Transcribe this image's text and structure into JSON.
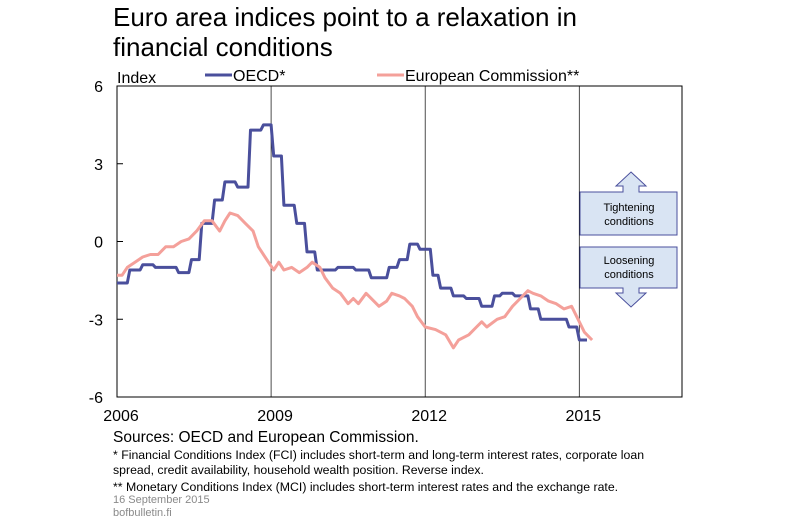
{
  "title_line1": "Euro area indices point to a relaxation in",
  "title_line2": "financial conditions",
  "sources": "Sources: OECD and European Commission.",
  "note1": "* Financial Conditions Index (FCI) includes short-term and long-term interest rates, corporate loan spread, credit availability, household wealth position. Reverse index.",
  "note2": "** Monetary Conditions Index (MCI) includes short-term interest rates and the exchange rate.",
  "date": "16 September  2015",
  "site": "bofbulletin.fi",
  "annotations": {
    "up_line1": "Tightening",
    "up_line2": "conditions",
    "down_line1": "Loosening",
    "down_line2": "conditions"
  },
  "chart_data": {
    "type": "line",
    "ylabel": "Index",
    "ylim": [
      -6,
      6
    ],
    "yticks": [
      6,
      3,
      0,
      -3,
      -6
    ],
    "xlim": [
      2006,
      2017
    ],
    "xticks": [
      2006,
      2009,
      2012,
      2015
    ],
    "legend": "top",
    "grid": "vertical",
    "series": [
      {
        "name": "OECD*",
        "color": "#4a4f9c",
        "points": [
          [
            2006.0,
            -1.6
          ],
          [
            2006.2,
            -1.6
          ],
          [
            2006.25,
            -1.1
          ],
          [
            2006.45,
            -1.1
          ],
          [
            2006.5,
            -0.9
          ],
          [
            2006.7,
            -0.9
          ],
          [
            2006.75,
            -1.0
          ],
          [
            2007.15,
            -1.0
          ],
          [
            2007.2,
            -1.2
          ],
          [
            2007.4,
            -1.2
          ],
          [
            2007.45,
            -0.7
          ],
          [
            2007.6,
            -0.7
          ],
          [
            2007.65,
            0.7
          ],
          [
            2007.85,
            0.7
          ],
          [
            2007.9,
            1.6
          ],
          [
            2008.05,
            1.6
          ],
          [
            2008.1,
            2.3
          ],
          [
            2008.3,
            2.3
          ],
          [
            2008.35,
            2.1
          ],
          [
            2008.55,
            2.1
          ],
          [
            2008.6,
            4.3
          ],
          [
            2008.8,
            4.3
          ],
          [
            2008.85,
            4.5
          ],
          [
            2009.0,
            4.5
          ],
          [
            2009.05,
            3.3
          ],
          [
            2009.2,
            3.3
          ],
          [
            2009.25,
            1.4
          ],
          [
            2009.45,
            1.4
          ],
          [
            2009.5,
            0.7
          ],
          [
            2009.65,
            0.7
          ],
          [
            2009.7,
            -0.4
          ],
          [
            2009.85,
            -0.4
          ],
          [
            2009.9,
            -1.1
          ],
          [
            2010.25,
            -1.1
          ],
          [
            2010.3,
            -1.0
          ],
          [
            2010.6,
            -1.0
          ],
          [
            2010.65,
            -1.1
          ],
          [
            2010.9,
            -1.1
          ],
          [
            2010.95,
            -1.4
          ],
          [
            2011.25,
            -1.4
          ],
          [
            2011.3,
            -1.0
          ],
          [
            2011.45,
            -1.0
          ],
          [
            2011.5,
            -0.7
          ],
          [
            2011.65,
            -0.7
          ],
          [
            2011.7,
            -0.1
          ],
          [
            2011.85,
            -0.1
          ],
          [
            2011.9,
            -0.3
          ],
          [
            2012.1,
            -0.3
          ],
          [
            2012.15,
            -1.3
          ],
          [
            2012.25,
            -1.3
          ],
          [
            2012.3,
            -1.8
          ],
          [
            2012.5,
            -1.8
          ],
          [
            2012.55,
            -2.1
          ],
          [
            2012.75,
            -2.1
          ],
          [
            2012.8,
            -2.2
          ],
          [
            2013.05,
            -2.2
          ],
          [
            2013.1,
            -2.5
          ],
          [
            2013.3,
            -2.5
          ],
          [
            2013.35,
            -2.1
          ],
          [
            2013.45,
            -2.1
          ],
          [
            2013.5,
            -2.0
          ],
          [
            2013.7,
            -2.0
          ],
          [
            2013.75,
            -2.1
          ],
          [
            2014.0,
            -2.1
          ],
          [
            2014.05,
            -2.6
          ],
          [
            2014.2,
            -2.6
          ],
          [
            2014.25,
            -3.0
          ],
          [
            2014.75,
            -3.0
          ],
          [
            2014.8,
            -3.3
          ],
          [
            2014.95,
            -3.3
          ],
          [
            2015.0,
            -3.8
          ],
          [
            2015.15,
            -3.8
          ]
        ]
      },
      {
        "name": "European Commission**",
        "color": "#f4a09a",
        "points": [
          [
            2006.0,
            -1.3
          ],
          [
            2006.1,
            -1.3
          ],
          [
            2006.2,
            -1.0
          ],
          [
            2006.35,
            -0.8
          ],
          [
            2006.5,
            -0.6
          ],
          [
            2006.65,
            -0.5
          ],
          [
            2006.8,
            -0.5
          ],
          [
            2006.95,
            -0.2
          ],
          [
            2007.1,
            -0.2
          ],
          [
            2007.25,
            0.0
          ],
          [
            2007.4,
            0.1
          ],
          [
            2007.55,
            0.4
          ],
          [
            2007.7,
            0.8
          ],
          [
            2007.85,
            0.8
          ],
          [
            2008.0,
            0.4
          ],
          [
            2008.1,
            0.8
          ],
          [
            2008.2,
            1.1
          ],
          [
            2008.35,
            1.0
          ],
          [
            2008.5,
            0.7
          ],
          [
            2008.65,
            0.4
          ],
          [
            2008.75,
            -0.2
          ],
          [
            2008.85,
            -0.5
          ],
          [
            2008.95,
            -0.8
          ],
          [
            2009.05,
            -1.1
          ],
          [
            2009.15,
            -0.8
          ],
          [
            2009.25,
            -1.1
          ],
          [
            2009.4,
            -1.0
          ],
          [
            2009.55,
            -1.2
          ],
          [
            2009.7,
            -1.0
          ],
          [
            2009.8,
            -0.8
          ],
          [
            2009.95,
            -1.0
          ],
          [
            2010.05,
            -1.4
          ],
          [
            2010.2,
            -1.8
          ],
          [
            2010.35,
            -2.0
          ],
          [
            2010.5,
            -2.4
          ],
          [
            2010.6,
            -2.2
          ],
          [
            2010.7,
            -2.4
          ],
          [
            2010.85,
            -2.0
          ],
          [
            2011.0,
            -2.3
          ],
          [
            2011.1,
            -2.5
          ],
          [
            2011.25,
            -2.3
          ],
          [
            2011.35,
            -2.0
          ],
          [
            2011.5,
            -2.1
          ],
          [
            2011.6,
            -2.2
          ],
          [
            2011.75,
            -2.5
          ],
          [
            2011.85,
            -2.9
          ],
          [
            2012.0,
            -3.3
          ],
          [
            2012.2,
            -3.4
          ],
          [
            2012.4,
            -3.6
          ],
          [
            2012.55,
            -4.1
          ],
          [
            2012.65,
            -3.8
          ],
          [
            2012.85,
            -3.6
          ],
          [
            2013.0,
            -3.3
          ],
          [
            2013.1,
            -3.1
          ],
          [
            2013.2,
            -3.3
          ],
          [
            2013.4,
            -3.0
          ],
          [
            2013.55,
            -2.9
          ],
          [
            2013.7,
            -2.5
          ],
          [
            2013.85,
            -2.2
          ],
          [
            2014.0,
            -1.9
          ],
          [
            2014.1,
            -2.0
          ],
          [
            2014.25,
            -2.1
          ],
          [
            2014.4,
            -2.3
          ],
          [
            2014.55,
            -2.4
          ],
          [
            2014.7,
            -2.6
          ],
          [
            2014.85,
            -2.5
          ],
          [
            2015.0,
            -3.1
          ],
          [
            2015.1,
            -3.5
          ],
          [
            2015.25,
            -3.8
          ]
        ]
      }
    ]
  }
}
